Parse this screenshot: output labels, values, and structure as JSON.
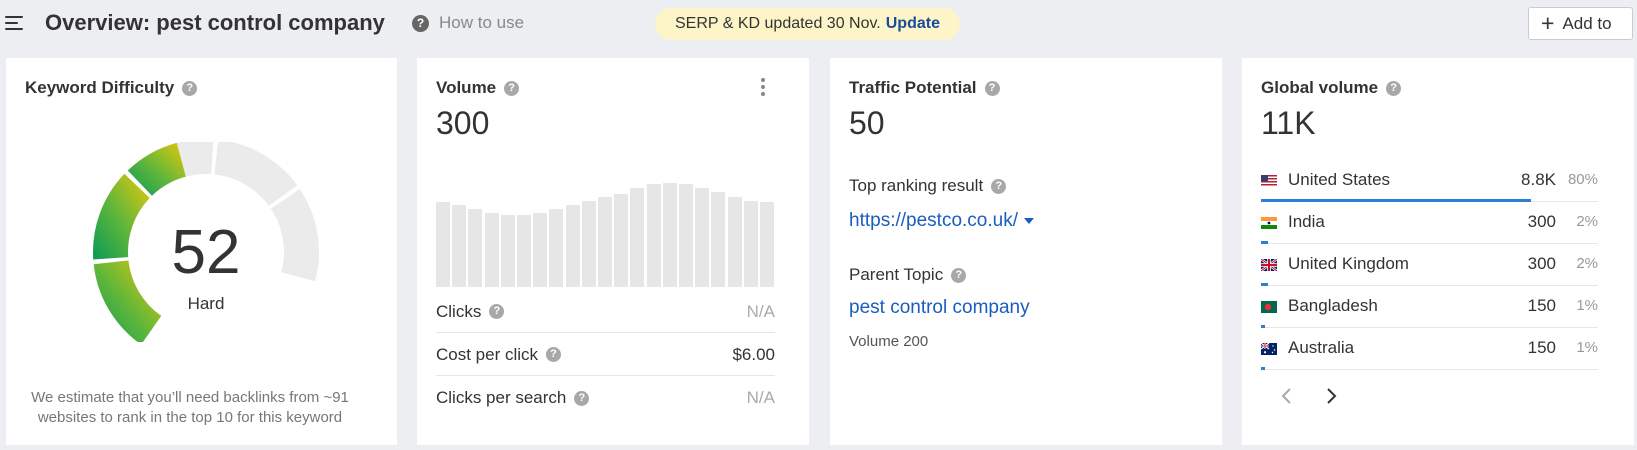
{
  "header": {
    "title": "Overview: pest control company",
    "help_icon_glyph": "?",
    "how_to_use": "How to use",
    "notice_text": "SERP & KD updated 30 Nov.",
    "notice_link": "Update",
    "add_button": "Add to"
  },
  "colors": {
    "accent": "#1a5dbd",
    "bar_blue": "#2b7fd4",
    "notice_bg": "#fdf5c8"
  },
  "kd": {
    "title": "Keyword Difficulty",
    "value": "52",
    "label": "Hard",
    "score": 52,
    "note": "We estimate that you’ll need backlinks from ~91 websites to rank in the top 10 for this keyword"
  },
  "volume": {
    "title": "Volume",
    "value": "300",
    "trend": [
      100,
      97,
      92,
      88,
      85,
      85,
      87,
      92,
      97,
      102,
      106,
      110,
      117,
      122,
      123,
      122,
      117,
      112,
      107,
      102,
      100
    ],
    "rows": [
      {
        "label": "Clicks",
        "value": "N/A",
        "na": true
      },
      {
        "label": "Cost per click",
        "value": "$6.00",
        "na": false
      },
      {
        "label": "Clicks per search",
        "value": "N/A",
        "na": true
      }
    ]
  },
  "traffic": {
    "title": "Traffic Potential",
    "value": "50",
    "top_ranking_label": "Top ranking result",
    "top_ranking_url": "https://pestco.co.uk/",
    "parent_topic_label": "Parent Topic",
    "parent_topic": "pest control company",
    "parent_volume": "Volume 200"
  },
  "global": {
    "title": "Global volume",
    "value": "11K",
    "countries": [
      {
        "name": "United States",
        "volume": "8.8K",
        "pct": "80%",
        "share": 0.8,
        "flag": "us-flag-icon"
      },
      {
        "name": "India",
        "volume": "300",
        "pct": "2%",
        "share": 0.02,
        "flag": "india-flag-icon"
      },
      {
        "name": "United Kingdom",
        "volume": "300",
        "pct": "2%",
        "share": 0.02,
        "flag": "uk-flag-icon"
      },
      {
        "name": "Bangladesh",
        "volume": "150",
        "pct": "1%",
        "share": 0.01,
        "flag": "bangladesh-flag-icon"
      },
      {
        "name": "Australia",
        "volume": "150",
        "pct": "1%",
        "share": 0.01,
        "flag": "australia-flag-icon"
      }
    ]
  }
}
